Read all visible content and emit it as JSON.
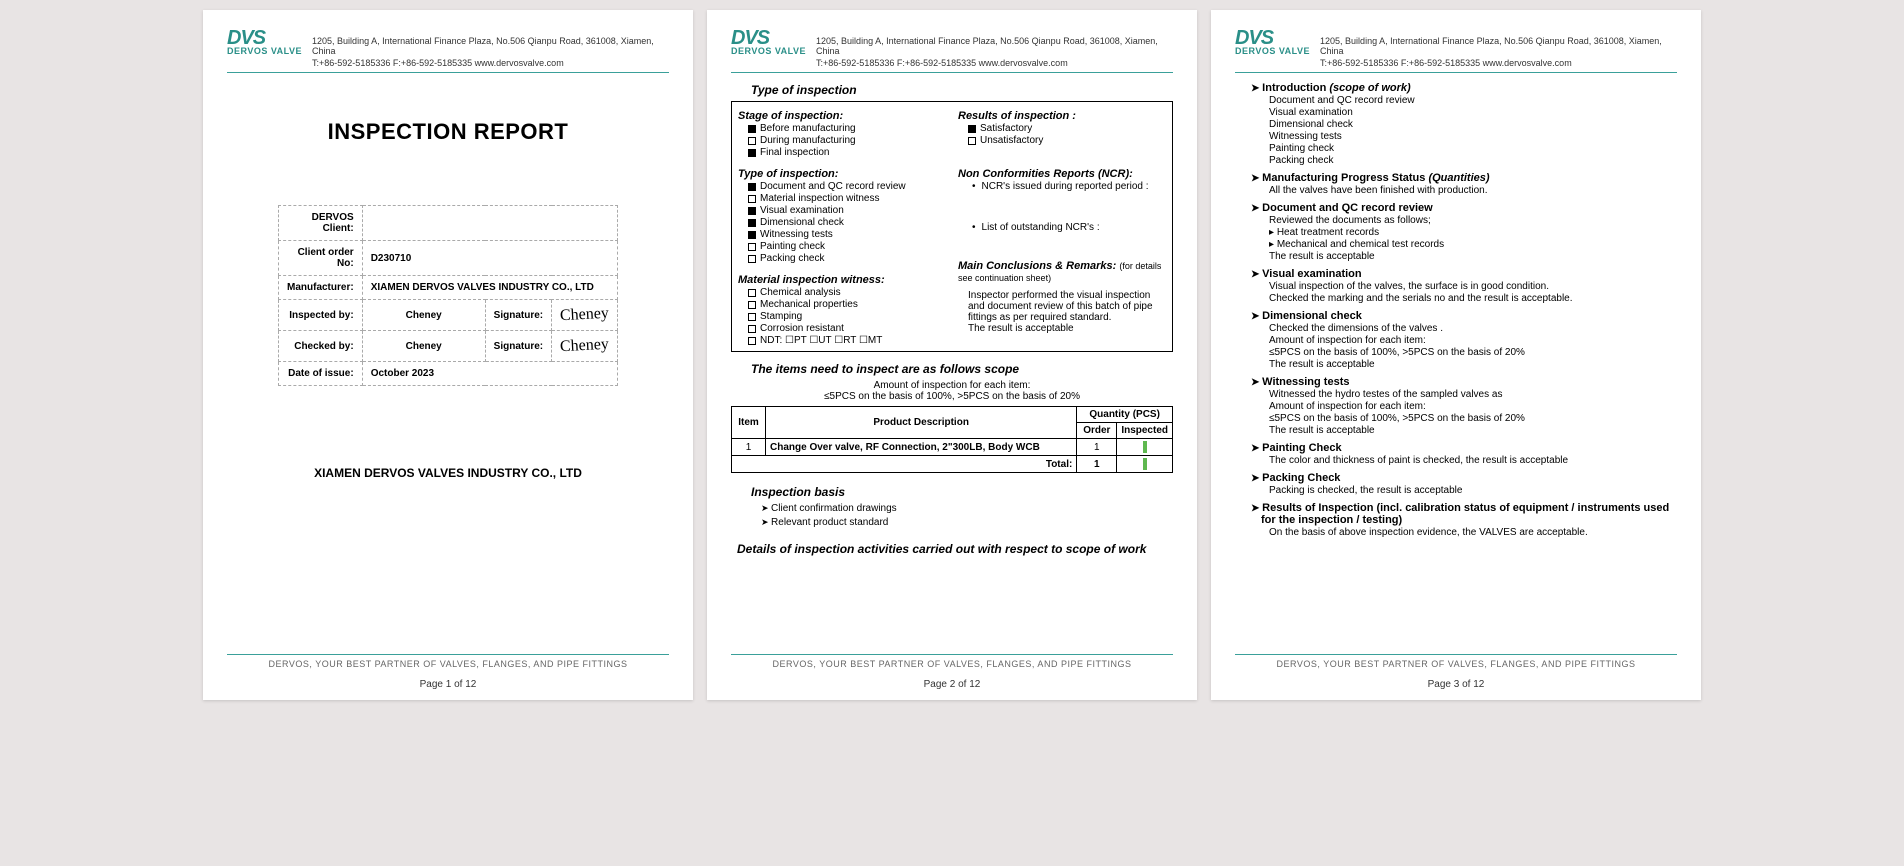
{
  "header": {
    "logo_main": "DVS",
    "logo_sub": "DERVOS VALVE",
    "address": "1205, Building A, International Finance Plaza, No.506 Qianpu Road, 361008, Xiamen, China",
    "contact": "T:+86-592-5185336   F:+86-592-5185335   www.dervosvalve.com"
  },
  "footer": {
    "tagline": "DERVOS, YOUR BEST PARTNER OF VALVES, FLANGES, AND PIPE FITTINGS",
    "page1": "Page 1 of 12",
    "page2": "Page 2 of 12",
    "page3": "Page 3 of 12"
  },
  "page1": {
    "title": "INSPECTION REPORT",
    "rows": {
      "client_label": "DERVOS Client:",
      "client_val": "",
      "order_label": "Client order No:",
      "order_val": "D230710",
      "mfr_label": "Manufacturer:",
      "mfr_val": "XIAMEN DERVOS VALVES INDUSTRY CO., LTD",
      "insp_label": "Inspected by:",
      "insp_val": "Cheney",
      "sig_label": "Signature:",
      "chk_label": "Checked by:",
      "chk_val": "Cheney",
      "date_label": "Date of issue:",
      "date_val": "October 2023",
      "sig_text": "Cheney"
    },
    "company": "XIAMEN DERVOS VALVES INDUSTRY CO., LTD"
  },
  "page2": {
    "type_title": "Type of inspection",
    "stage_title": "Stage of inspection:",
    "stage_items": [
      {
        "label": "Before manufacturing",
        "checked": true
      },
      {
        "label": "During manufacturing",
        "checked": false
      },
      {
        "label": "Final inspection",
        "checked": true
      }
    ],
    "type2_title": "Type of inspection:",
    "type2_items": [
      {
        "label": "Document and QC record review",
        "checked": true
      },
      {
        "label": "Material inspection witness",
        "checked": false
      },
      {
        "label": "Visual examination",
        "checked": true
      },
      {
        "label": "Dimensional check",
        "checked": true
      },
      {
        "label": "Witnessing tests",
        "checked": true
      },
      {
        "label": "Painting check",
        "checked": false
      },
      {
        "label": "Packing check",
        "checked": false
      }
    ],
    "matwit_title": "Material inspection witness:",
    "matwit_items": [
      {
        "label": "Chemical analysis",
        "checked": false
      },
      {
        "label": "Mechanical properties",
        "checked": false
      },
      {
        "label": "Stamping",
        "checked": false
      },
      {
        "label": "Corrosion resistant",
        "checked": false
      }
    ],
    "ndt_line": "NDT:  ☐PT  ☐UT  ☐RT  ☐MT",
    "results_title": "Results of inspection :",
    "results_items": [
      {
        "label": "Satisfactory",
        "checked": true
      },
      {
        "label": "Unsatisfactory",
        "checked": false
      }
    ],
    "ncr_title": "Non Conformities Reports (NCR):",
    "ncr_line1": "NCR's issued during reported period :",
    "ncr_line2": "List of outstanding NCR's :",
    "concl_title": "Main Conclusions & Remarks:",
    "concl_note": "(for details see continuation sheet)",
    "concl_body1": "Inspector performed the visual inspection and document review of this batch of pipe fittings as per required standard.",
    "concl_body2": "The result is acceptable",
    "scope_title": "The items need to inspect are as follows scope",
    "scope_sub1": "Amount of inspection for each item:",
    "scope_sub2": "≤5PCS on the basis of 100%,    >5PCS on the basis of 20%",
    "th_item": "Item",
    "th_desc": "Product Description",
    "th_qty": "Quantity (PCS)",
    "th_order": "Order",
    "th_insp": "Inspected",
    "row_item": "1",
    "row_desc": "Change Over valve, RF Connection, 2\"300LB, Body WCB",
    "row_order": "1",
    "total_label": "Total:",
    "total_val": "1",
    "basis_title": "Inspection basis",
    "basis_items": [
      "Client confirmation drawings",
      "Relevant product standard"
    ],
    "details_title": "Details of inspection activities carried out with respect to scope of work"
  },
  "page3": {
    "intro_head": "Introduction",
    "intro_ital": "(scope of work)",
    "intro_items": [
      "Document and QC record review",
      "Visual examination",
      "Dimensional check",
      "Witnessing tests",
      "Painting check",
      "Packing check"
    ],
    "mfg_head": "Manufacturing Progress Status",
    "mfg_ital": "(Quantities)",
    "mfg_body": "All the valves have been finished with production.",
    "doc_head": "Document and QC record review",
    "doc_l1": "Reviewed the documents as follows;",
    "doc_sub": [
      "Heat treatment records",
      "Mechanical and chemical test records"
    ],
    "doc_l2": "The result is acceptable",
    "vis_head": "Visual examination",
    "vis_l1": "Visual inspection of the valves, the surface is in good condition.",
    "vis_l2": "Checked the marking and the serials no and the result is acceptable.",
    "dim_head": "Dimensional check",
    "dim_l1": "Checked the dimensions of the valves .",
    "dim_l2": "Amount of inspection for each item:",
    "dim_l3": "≤5PCS on the basis of 100%,    >5PCS on the basis of 20%",
    "dim_l4": "The result is acceptable",
    "wit_head": "Witnessing tests",
    "wit_l1": "Witnessed the hydro testes of the sampled valves as",
    "wit_l2": "Amount of inspection for each item:",
    "wit_l3": "≤5PCS on the basis of 100%,    >5PCS on the basis of 20%",
    "wit_l4": "The result is acceptable",
    "paint_head": "Painting Check",
    "paint_l1": "The color and thickness of paint is checked, the result is acceptable",
    "pack_head": "Packing Check",
    "pack_l1": "Packing is checked, the result is acceptable",
    "res_head": "Results of Inspection (incl. calibration status of equipment / instruments used for the inspection / testing)",
    "res_l1": "On the basis of above inspection evidence, the VALVES are acceptable."
  }
}
